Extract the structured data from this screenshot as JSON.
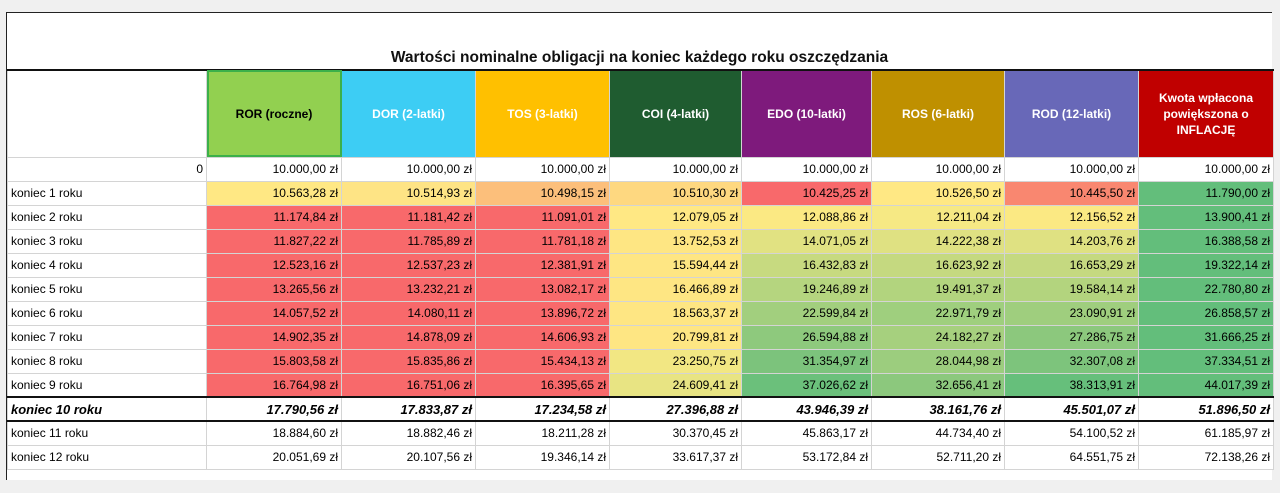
{
  "title": "Wartości nominalne obligacji na koniec każdego roku oszczędzania",
  "columns": [
    {
      "label": "ROR (roczne)",
      "color": "#92d050",
      "text_color": "#000000"
    },
    {
      "label": "DOR (2-latki)",
      "color": "#3dcdf4",
      "text_color": "#ffffff"
    },
    {
      "label": "TOS (3-latki)",
      "color": "#ffc000",
      "text_color": "#ffffff"
    },
    {
      "label": "COI (4-latki)",
      "color": "#1f5c30",
      "text_color": "#ffffff"
    },
    {
      "label": "EDO (10-latki)",
      "color": "#7e1a7c",
      "text_color": "#ffffff"
    },
    {
      "label": "ROS (6-latki)",
      "color": "#bf9000",
      "text_color": "#ffffff"
    },
    {
      "label": "ROD (12-latki)",
      "color": "#6868b8",
      "text_color": "#ffffff"
    },
    {
      "label": "Kwota wpłacona powiększona o INFLACJĘ",
      "color": "#c00000",
      "text_color": "#ffffff"
    }
  ],
  "rows": [
    {
      "label": "0",
      "cells": [
        "10.000,00 zł",
        "10.000,00 zł",
        "10.000,00 zł",
        "10.000,00 zł",
        "10.000,00 zł",
        "10.000,00 zł",
        "10.000,00 zł",
        "10.000,00 zł"
      ],
      "colors": [
        "#ffffff",
        "#ffffff",
        "#ffffff",
        "#ffffff",
        "#ffffff",
        "#ffffff",
        "#ffffff",
        "#ffffff"
      ]
    },
    {
      "label": "koniec 1 roku",
      "cells": [
        "10.563,28 zł",
        "10.514,93 zł",
        "10.498,15 zł",
        "10.510,30 zł",
        "10.425,25 zł",
        "10.526,50 zł",
        "10.445,50 zł",
        "11.790,00 zł"
      ],
      "colors": [
        "#ffe884",
        "#fee485",
        "#fcbf7b",
        "#fed880",
        "#f8696b",
        "#ffe884",
        "#f98770",
        "#63be7b"
      ]
    },
    {
      "label": "koniec 2 roku",
      "cells": [
        "11.174,84 zł",
        "11.181,42 zł",
        "11.091,01 zł",
        "12.079,05 zł",
        "12.088,86 zł",
        "12.211,04 zł",
        "12.156,52 zł",
        "13.900,41 zł"
      ],
      "colors": [
        "#f8696b",
        "#f8696b",
        "#f8696b",
        "#ffe884",
        "#fbe983",
        "#f6e984",
        "#fbe983",
        "#63be7b"
      ]
    },
    {
      "label": "koniec 3 roku",
      "cells": [
        "11.827,22 zł",
        "11.785,89 zł",
        "11.781,18 zł",
        "13.752,53 zł",
        "14.071,05 zł",
        "14.222,38 zł",
        "14.203,76 zł",
        "16.388,58 zł"
      ],
      "colors": [
        "#f8696b",
        "#f8696b",
        "#f8696b",
        "#fee683",
        "#e1e282",
        "#dfe182",
        "#dfe182",
        "#63be7b"
      ]
    },
    {
      "label": "koniec 4 roku",
      "cells": [
        "12.523,16 zł",
        "12.537,23 zł",
        "12.381,91 zł",
        "15.594,44 zł",
        "16.432,83 zł",
        "16.623,92 zł",
        "16.653,29 zł",
        "19.322,14 zł"
      ],
      "colors": [
        "#f8696b",
        "#f8696b",
        "#f8696b",
        "#fee683",
        "#c7da80",
        "#c5d980",
        "#c5d980",
        "#63be7b"
      ]
    },
    {
      "label": "koniec 5 roku",
      "cells": [
        "13.265,56 zł",
        "13.232,21 zł",
        "13.082,17 zł",
        "16.466,89 zł",
        "19.246,89 zł",
        "19.491,37 zł",
        "19.584,14 zł",
        "22.780,80 zł"
      ],
      "colors": [
        "#f8696b",
        "#f8696b",
        "#f8696b",
        "#fee683",
        "#b5d57f",
        "#b2d47e",
        "#b3d47e",
        "#63be7b"
      ]
    },
    {
      "label": "koniec 6 roku",
      "cells": [
        "14.057,52 zł",
        "14.080,11 zł",
        "13.896,72 zł",
        "18.563,37 zł",
        "22.599,84 zł",
        "22.971,79 zł",
        "23.090,91 zł",
        "26.858,57 zł"
      ],
      "colors": [
        "#f8696b",
        "#f8696b",
        "#f8696b",
        "#fee683",
        "#a2cf7e",
        "#9fcf7e",
        "#9fce7e",
        "#63be7b"
      ]
    },
    {
      "label": "koniec 7 roku",
      "cells": [
        "14.902,35 zł",
        "14.878,09 zł",
        "14.606,93 zł",
        "20.799,81 zł",
        "26.594,88 zł",
        "24.182,27 zł",
        "27.286,75 zł",
        "31.666,25 zł"
      ],
      "colors": [
        "#f8696b",
        "#f8696b",
        "#f8696b",
        "#fee683",
        "#8ec97d",
        "#a6d07e",
        "#8cc87d",
        "#63be7b"
      ]
    },
    {
      "label": "koniec 8 roku",
      "cells": [
        "15.803,58 zł",
        "15.835,86 zł",
        "15.434,13 zł",
        "23.250,75 zł",
        "31.354,97 zł",
        "28.044,98 zł",
        "32.307,08 zł",
        "37.334,51 zł"
      ],
      "colors": [
        "#f8696b",
        "#f8696b",
        "#f8696b",
        "#f2e783",
        "#7cc37c",
        "#9ccd7e",
        "#7dc47c",
        "#63be7b"
      ]
    },
    {
      "label": "koniec 9 roku",
      "cells": [
        "16.764,98 zł",
        "16.751,06 zł",
        "16.395,65 zł",
        "24.609,41 zł",
        "37.026,62 zł",
        "32.656,41 zł",
        "38.313,91 zł",
        "44.017,39 zł"
      ],
      "colors": [
        "#f8696b",
        "#f8696b",
        "#f8696b",
        "#e8e483",
        "#6bc07b",
        "#8cc87d",
        "#66bf7b",
        "#63be7b"
      ]
    },
    {
      "label": "koniec 10 roku",
      "bold": true,
      "cells": [
        "17.790,56 zł",
        "17.833,87 zł",
        "17.234,58 zł",
        "27.396,88 zł",
        "43.946,39 zł",
        "38.161,76 zł",
        "45.501,07 zł",
        "51.896,50 zł"
      ],
      "colors": [
        "#ffffff",
        "#ffffff",
        "#ffffff",
        "#ffffff",
        "#ffffff",
        "#ffffff",
        "#ffffff",
        "#ffffff"
      ]
    },
    {
      "label": "koniec 11 roku",
      "cells": [
        "18.884,60 zł",
        "18.882,46 zł",
        "18.211,28 zł",
        "30.370,45 zł",
        "45.863,17 zł",
        "44.734,40 zł",
        "54.100,52 zł",
        "61.185,97 zł"
      ],
      "colors": [
        "#ffffff",
        "#ffffff",
        "#ffffff",
        "#ffffff",
        "#ffffff",
        "#ffffff",
        "#ffffff",
        "#ffffff"
      ]
    },
    {
      "label": "koniec 12 roku",
      "cells": [
        "20.051,69 zł",
        "20.107,56 zł",
        "19.346,14 zł",
        "33.617,37 zł",
        "53.172,84 zł",
        "52.711,20 zł",
        "64.551,75 zł",
        "72.138,26 zł"
      ],
      "colors": [
        "#ffffff",
        "#ffffff",
        "#ffffff",
        "#ffffff",
        "#ffffff",
        "#ffffff",
        "#ffffff",
        "#ffffff"
      ]
    }
  ]
}
